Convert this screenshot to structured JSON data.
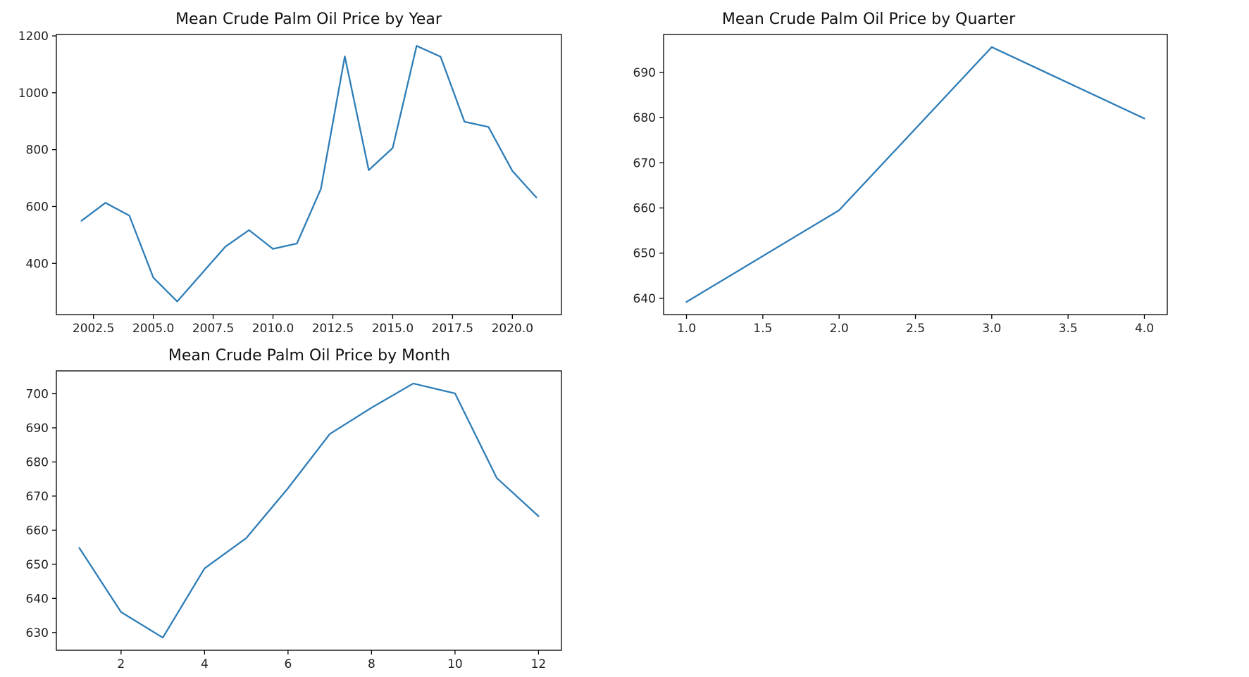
{
  "colors": {
    "line": "#2e7db8",
    "axis": "#000000",
    "background": "#ffffff"
  },
  "chart_data": [
    {
      "id": "year",
      "type": "line",
      "title": "Mean Crude Palm Oil Price by Year",
      "xlabel": "",
      "ylabel": "",
      "x": [
        2002,
        2003,
        2004,
        2005,
        2006,
        2007,
        2008,
        2009,
        2010,
        2011,
        2012,
        2013,
        2014,
        2015,
        2016,
        2017,
        2018,
        2019,
        2020,
        2021
      ],
      "series": [
        {
          "values": [
            550,
            613,
            568,
            350,
            266,
            362,
            458,
            517,
            451,
            470,
            662,
            1128,
            728,
            806,
            1165,
            1127,
            898,
            880,
            725,
            632
          ]
        }
      ],
      "xlim": [
        2000.95,
        2022.05
      ],
      "ylim": [
        220,
        1205
      ],
      "xticks": [
        2002.5,
        2005.0,
        2007.5,
        2010.0,
        2012.5,
        2015.0,
        2017.5,
        2020.0
      ],
      "xtick_labels": [
        "2002.5",
        "2005.0",
        "2007.5",
        "2010.0",
        "2012.5",
        "2015.0",
        "2017.5",
        "2020.0"
      ],
      "yticks": [
        400,
        600,
        800,
        1000,
        1200
      ],
      "ytick_labels": [
        "400",
        "600",
        "800",
        "1000",
        "1200"
      ],
      "grid": false
    },
    {
      "id": "quarter",
      "type": "line",
      "title": "Mean Crude Palm Oil Price  by Quarter",
      "xlabel": "",
      "ylabel": "",
      "x": [
        1,
        2,
        3,
        4
      ],
      "series": [
        {
          "values": [
            639.2,
            659.5,
            695.6,
            679.8
          ]
        }
      ],
      "xlim": [
        0.85,
        4.15
      ],
      "ylim": [
        636.4,
        698.4
      ],
      "xticks": [
        1.0,
        1.5,
        2.0,
        2.5,
        3.0,
        3.5,
        4.0
      ],
      "xtick_labels": [
        "1.0",
        "1.5",
        "2.0",
        "2.5",
        "3.0",
        "3.5",
        "4.0"
      ],
      "yticks": [
        640,
        650,
        660,
        670,
        680,
        690
      ],
      "ytick_labels": [
        "640",
        "650",
        "660",
        "670",
        "680",
        "690"
      ],
      "grid": false
    },
    {
      "id": "month",
      "type": "line",
      "title": "Mean Crude Palm Oil Price  by Month",
      "xlabel": "",
      "ylabel": "",
      "x": [
        1,
        2,
        3,
        4,
        5,
        6,
        7,
        8,
        9,
        10,
        11,
        12
      ],
      "series": [
        {
          "values": [
            654.8,
            636.0,
            628.5,
            648.8,
            657.7,
            672.3,
            688.2,
            695.9,
            703.0,
            700.1,
            675.3,
            664.1
          ]
        }
      ],
      "xlim": [
        0.45,
        12.55
      ],
      "ylim": [
        624.8,
        706.7
      ],
      "xticks": [
        2,
        4,
        6,
        8,
        10,
        12
      ],
      "xtick_labels": [
        "2",
        "4",
        "6",
        "8",
        "10",
        "12"
      ],
      "yticks": [
        630,
        640,
        650,
        660,
        670,
        680,
        690,
        700
      ],
      "ytick_labels": [
        "630",
        "640",
        "650",
        "660",
        "670",
        "680",
        "690",
        "700"
      ],
      "grid": false
    }
  ]
}
